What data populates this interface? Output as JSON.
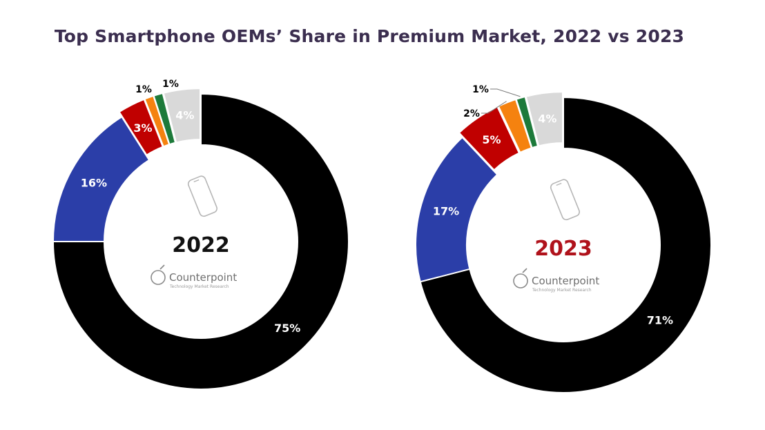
{
  "colors": {
    "black": "#000000",
    "blue": "#2b3ea8",
    "red": "#c00000",
    "orange": "#f5820f",
    "green": "#1d7a3a",
    "gray": "#d9d9d9",
    "title": "#3b2e4f",
    "year_2022": "#111111",
    "year_2023": "#b0121b",
    "brand": "#6f6f6f"
  },
  "chart_data": {
    "type": "pie",
    "title": "Top Smartphone OEMs’ Share in Premium Market, 2022 vs 2023",
    "charts": [
      {
        "year": "2022",
        "year_color": "#111111",
        "slices": [
          {
            "value": 75,
            "label": "75%",
            "color": "#000000",
            "label_color": "#ffffff"
          },
          {
            "value": 16,
            "label": "16%",
            "color": "#2b3ea8",
            "label_color": "#ffffff"
          },
          {
            "value": 3,
            "label": "3%",
            "color": "#c00000",
            "label_color": "#ffffff"
          },
          {
            "value": 1,
            "label": "1%",
            "color": "#f5820f",
            "label_color": "#000000"
          },
          {
            "value": 1,
            "label": "1%",
            "color": "#1d7a3a",
            "label_color": "#000000"
          },
          {
            "value": 4,
            "label": "4%",
            "color": "#d9d9d9",
            "label_color": "#ffffff"
          }
        ]
      },
      {
        "year": "2023",
        "year_color": "#b0121b",
        "slices": [
          {
            "value": 71,
            "label": "71%",
            "color": "#000000",
            "label_color": "#ffffff"
          },
          {
            "value": 17,
            "label": "17%",
            "color": "#2b3ea8",
            "label_color": "#ffffff"
          },
          {
            "value": 5,
            "label": "5%",
            "color": "#c00000",
            "label_color": "#ffffff"
          },
          {
            "value": 2,
            "label": "2%",
            "color": "#f5820f",
            "label_color": "#000000"
          },
          {
            "value": 1,
            "label": "1%",
            "color": "#1d7a3a",
            "label_color": "#000000"
          },
          {
            "value": 4,
            "label": "4%",
            "color": "#d9d9d9",
            "label_color": "#ffffff"
          }
        ]
      }
    ]
  },
  "watermark": {
    "brand": "Counterpoint",
    "tagline": "Technology Market Research"
  }
}
